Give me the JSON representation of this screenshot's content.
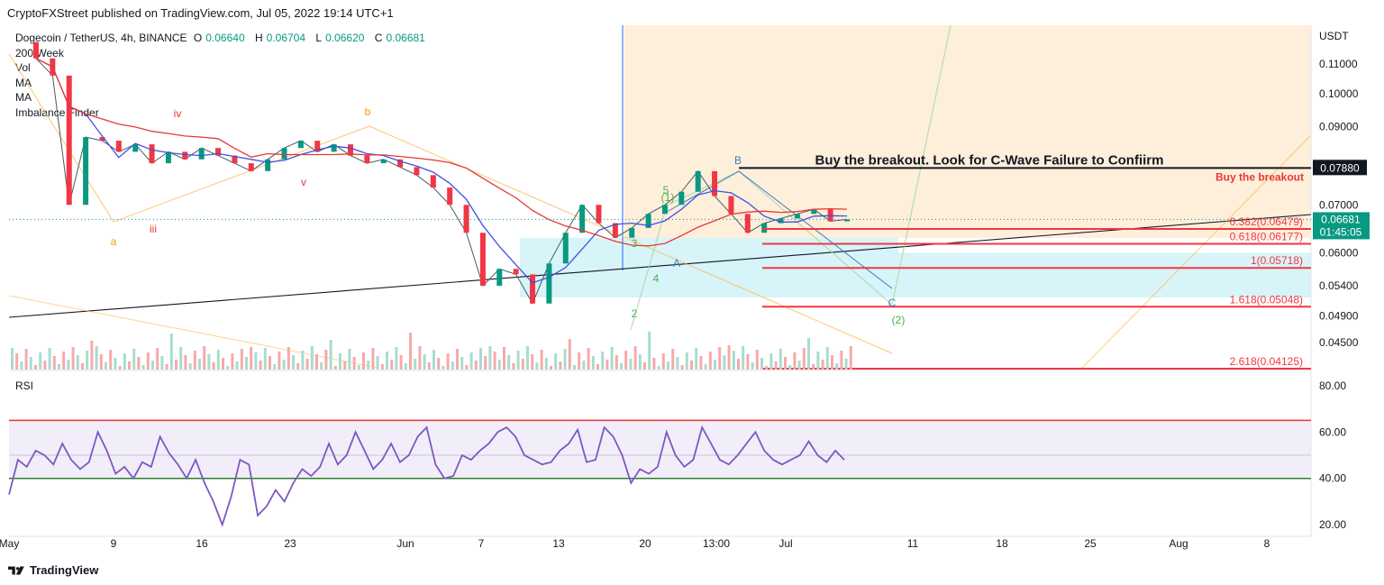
{
  "header": {
    "publisher": "CryptoFXStreet published on TradingView.com, Jul 05, 2022 19:14 UTC+1"
  },
  "legend": {
    "symbol": "Dogecoin / TetherUS, 4h, BINANCE",
    "ohlc": [
      {
        "k": "O",
        "v": "0.06640"
      },
      {
        "k": "H",
        "v": "0.06704"
      },
      {
        "k": "L",
        "v": "0.06620"
      },
      {
        "k": "C",
        "v": "0.06681"
      }
    ],
    "indicators": [
      "200 Week",
      "Vol",
      "MA",
      "MA",
      "Imbalance Finder"
    ]
  },
  "footer": {
    "brand": "TradingView"
  },
  "colors": {
    "up": "#089981",
    "down": "#f23645",
    "ma_blue": "#3f51e0",
    "ma_red": "#e53935",
    "rsi": "#7e57c2",
    "fib": "#f23645",
    "orange": "#ff9800",
    "green_wave": "#4caf50"
  },
  "chart_data": {
    "type": "line",
    "title": "Dogecoin / TetherUS, 4h, BINANCE",
    "ylabel": "USDT",
    "price_axis": {
      "unit": "USDT",
      "ticks": [
        "0.11000",
        "0.10000",
        "0.09000",
        "0.07000",
        "0.06000",
        "0.05400",
        "0.04900",
        "0.04500"
      ],
      "tick_values": [
        0.11,
        0.1,
        0.09,
        0.07,
        0.06,
        0.054,
        0.049,
        0.045
      ],
      "scale": "log"
    },
    "x_ticks": [
      "May",
      "9",
      "16",
      "23",
      "Jun",
      "7",
      "13",
      "20",
      "13:00",
      "Jul",
      "11",
      "18",
      "25",
      "Aug",
      "8"
    ],
    "current_price": {
      "value": "0.06681",
      "countdown": "01:45:05"
    },
    "breakout_level": {
      "value": "0.07880",
      "label": "Buy the breakout"
    },
    "annotation": "Buy the breakout. Look for C-Wave Failure to Confiirm",
    "fib_levels": [
      {
        "label": "0.382(0.06479)",
        "value": 0.06479
      },
      {
        "label": "0.618(0.06177)",
        "value": 0.06177
      },
      {
        "label": "1(0.05718)",
        "value": 0.05718
      },
      {
        "label": "1.618(0.05048)",
        "value": 0.05048
      },
      {
        "label": "2.618(0.04125)",
        "value": 0.04125
      }
    ],
    "wave_labels": [
      "a",
      "b",
      "iii",
      "iv",
      "v",
      "B",
      "C",
      "(1)",
      "(2)",
      "2",
      "3",
      "4",
      "5",
      "A"
    ],
    "price_path": [
      [
        0.118,
        0.112
      ],
      [
        0.112,
        0.106
      ],
      [
        0.106,
        0.07
      ],
      [
        0.07,
        0.087
      ],
      [
        0.087,
        0.086
      ],
      [
        0.086,
        0.083
      ],
      [
        0.083,
        0.085
      ],
      [
        0.085,
        0.08
      ],
      [
        0.08,
        0.083
      ],
      [
        0.083,
        0.081
      ],
      [
        0.081,
        0.084
      ],
      [
        0.084,
        0.082
      ],
      [
        0.082,
        0.08
      ],
      [
        0.08,
        0.078
      ],
      [
        0.078,
        0.081
      ],
      [
        0.081,
        0.084
      ],
      [
        0.084,
        0.086
      ],
      [
        0.086,
        0.083
      ],
      [
        0.083,
        0.085
      ],
      [
        0.085,
        0.082
      ],
      [
        0.082,
        0.08
      ],
      [
        0.08,
        0.081
      ],
      [
        0.081,
        0.079
      ],
      [
        0.079,
        0.077
      ],
      [
        0.077,
        0.074
      ],
      [
        0.074,
        0.07
      ],
      [
        0.07,
        0.064
      ],
      [
        0.064,
        0.054
      ],
      [
        0.054,
        0.057
      ],
      [
        0.057,
        0.056
      ],
      [
        0.056,
        0.051
      ],
      [
        0.051,
        0.058
      ],
      [
        0.058,
        0.064
      ],
      [
        0.064,
        0.07
      ],
      [
        0.07,
        0.066
      ],
      [
        0.066,
        0.063
      ],
      [
        0.063,
        0.065
      ],
      [
        0.065,
        0.068
      ],
      [
        0.068,
        0.07
      ],
      [
        0.07,
        0.073
      ],
      [
        0.073,
        0.078
      ],
      [
        0.078,
        0.072
      ],
      [
        0.072,
        0.068
      ],
      [
        0.068,
        0.064
      ],
      [
        0.064,
        0.066
      ],
      [
        0.066,
        0.067
      ],
      [
        0.067,
        0.068
      ],
      [
        0.068,
        0.069
      ],
      [
        0.069,
        0.0664
      ],
      [
        0.0664,
        0.0668
      ]
    ],
    "rsi": {
      "label": "RSI",
      "ticks": [
        "80.00",
        "60.00",
        "40.00",
        "20.00"
      ],
      "tick_values": [
        80,
        60,
        40,
        20
      ],
      "upper_band": 65,
      "lower_band": 40,
      "values": [
        33,
        48,
        45,
        52,
        50,
        46,
        55,
        48,
        44,
        47,
        60,
        52,
        42,
        45,
        40,
        47,
        45,
        58,
        51,
        46,
        40,
        48,
        38,
        30,
        20,
        32,
        48,
        46,
        24,
        28,
        35,
        30,
        38,
        44,
        41,
        45,
        55,
        46,
        50,
        60,
        52,
        44,
        48,
        55,
        47,
        50,
        58,
        62,
        46,
        40,
        41,
        50,
        48,
        52,
        55,
        60,
        62,
        58,
        50,
        48,
        46,
        47,
        52,
        55,
        61,
        47,
        48,
        62,
        58,
        50,
        38,
        44,
        42,
        45,
        60,
        50,
        45,
        48,
        62,
        55,
        48,
        46,
        50,
        55,
        60,
        52,
        48,
        46,
        48,
        50,
        56,
        50,
        47,
        52,
        48
      ]
    }
  }
}
